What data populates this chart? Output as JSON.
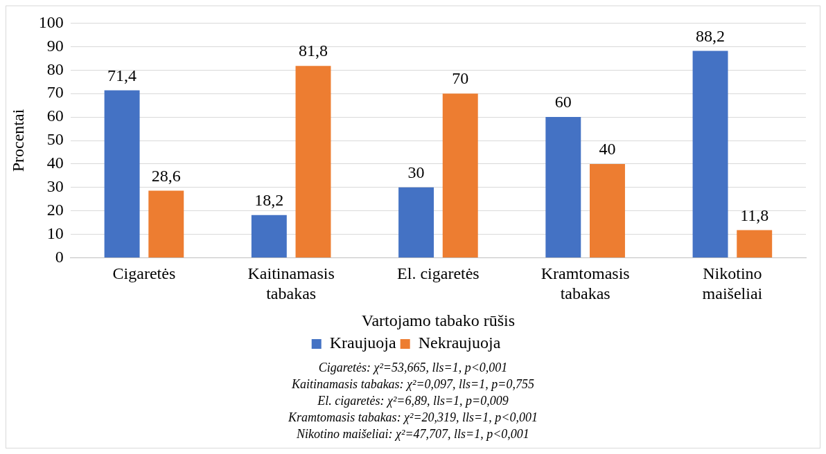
{
  "chart_data": {
    "type": "bar",
    "categories": [
      "Cigaretės",
      "Kaitinamasis tabakas",
      "El. cigaretės",
      "Kramtomasis tabakas",
      "Nikotino maišeliai"
    ],
    "series": [
      {
        "name": "Kraujuoja",
        "color": "#4472c4",
        "values": [
          71.4,
          18.2,
          30,
          60,
          88.2
        ],
        "value_labels": [
          "71,4",
          "18,2",
          "30",
          "60",
          "88,2"
        ]
      },
      {
        "name": "Nekraujuoja",
        "color": "#ed7d31",
        "values": [
          28.6,
          81.8,
          70,
          40,
          11.8
        ],
        "value_labels": [
          "28,6",
          "81,8",
          "70",
          "40",
          "11,8"
        ]
      }
    ],
    "xlabel": "Vartojamo tabako rūšis",
    "ylabel": "Procentai",
    "ylim": [
      0,
      100
    ],
    "yticks": [
      0,
      10,
      20,
      30,
      40,
      50,
      60,
      70,
      80,
      90,
      100
    ],
    "grid": "y",
    "legend": "bottom",
    "annotations": [
      "Cigaretės: χ²=53,665, lls=1, p<0,001",
      "Kaitinamasis tabakas: χ²=0,097, lls=1, p=0,755",
      "El. cigaretės: χ²=6,89, lls=1, p=0,009",
      "Kramtomasis tabakas: χ²=20,319, lls=1, p<0,001",
      "Nikotino maišeliai: χ²=47,707, lls=1, p<0,001"
    ]
  }
}
